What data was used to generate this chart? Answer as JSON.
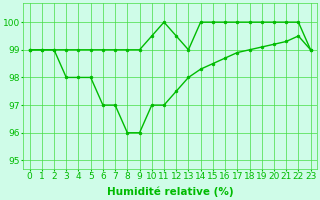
{
  "line1_x": [
    0,
    1,
    2,
    3,
    4,
    5,
    6,
    7,
    8,
    9,
    10,
    11,
    12,
    13,
    14,
    15,
    16,
    17,
    18,
    19,
    20,
    21,
    22,
    23
  ],
  "line1_y": [
    99,
    99,
    99,
    99,
    99,
    99,
    99,
    99,
    99,
    99,
    99.5,
    100,
    99.5,
    99,
    100,
    100,
    100,
    100,
    100,
    100,
    100,
    100,
    100,
    99
  ],
  "line2_x": [
    0,
    1,
    2,
    3,
    4,
    5,
    6,
    7,
    8,
    9,
    10,
    11,
    12,
    13,
    14,
    15,
    16,
    17,
    18,
    19,
    20,
    21,
    22,
    23
  ],
  "line2_y": [
    99,
    99,
    99,
    98,
    98,
    98,
    97,
    97,
    96,
    96,
    97,
    97,
    97.5,
    98,
    98.3,
    98.5,
    98.7,
    98.9,
    99,
    99.1,
    99.2,
    99.3,
    99.5,
    99
  ],
  "line_color": "#00bb00",
  "bg_color": "#cffce8",
  "grid_color": "#44dd44",
  "xlabel": "Humidité relative (%)",
  "xlabel_fontsize": 7.5,
  "ylabel_ticks": [
    95,
    96,
    97,
    98,
    99,
    100
  ],
  "xlim": [
    -0.5,
    23.5
  ],
  "ylim": [
    94.7,
    100.7
  ],
  "xtick_labels": [
    "0",
    "1",
    "2",
    "3",
    "4",
    "5",
    "6",
    "7",
    "8",
    "9",
    "10",
    "11",
    "12",
    "13",
    "14",
    "15",
    "16",
    "17",
    "18",
    "19",
    "20",
    "21",
    "22",
    "23"
  ],
  "tick_fontsize": 6.5,
  "marker": "o",
  "markersize": 2.0,
  "linewidth": 1.0
}
